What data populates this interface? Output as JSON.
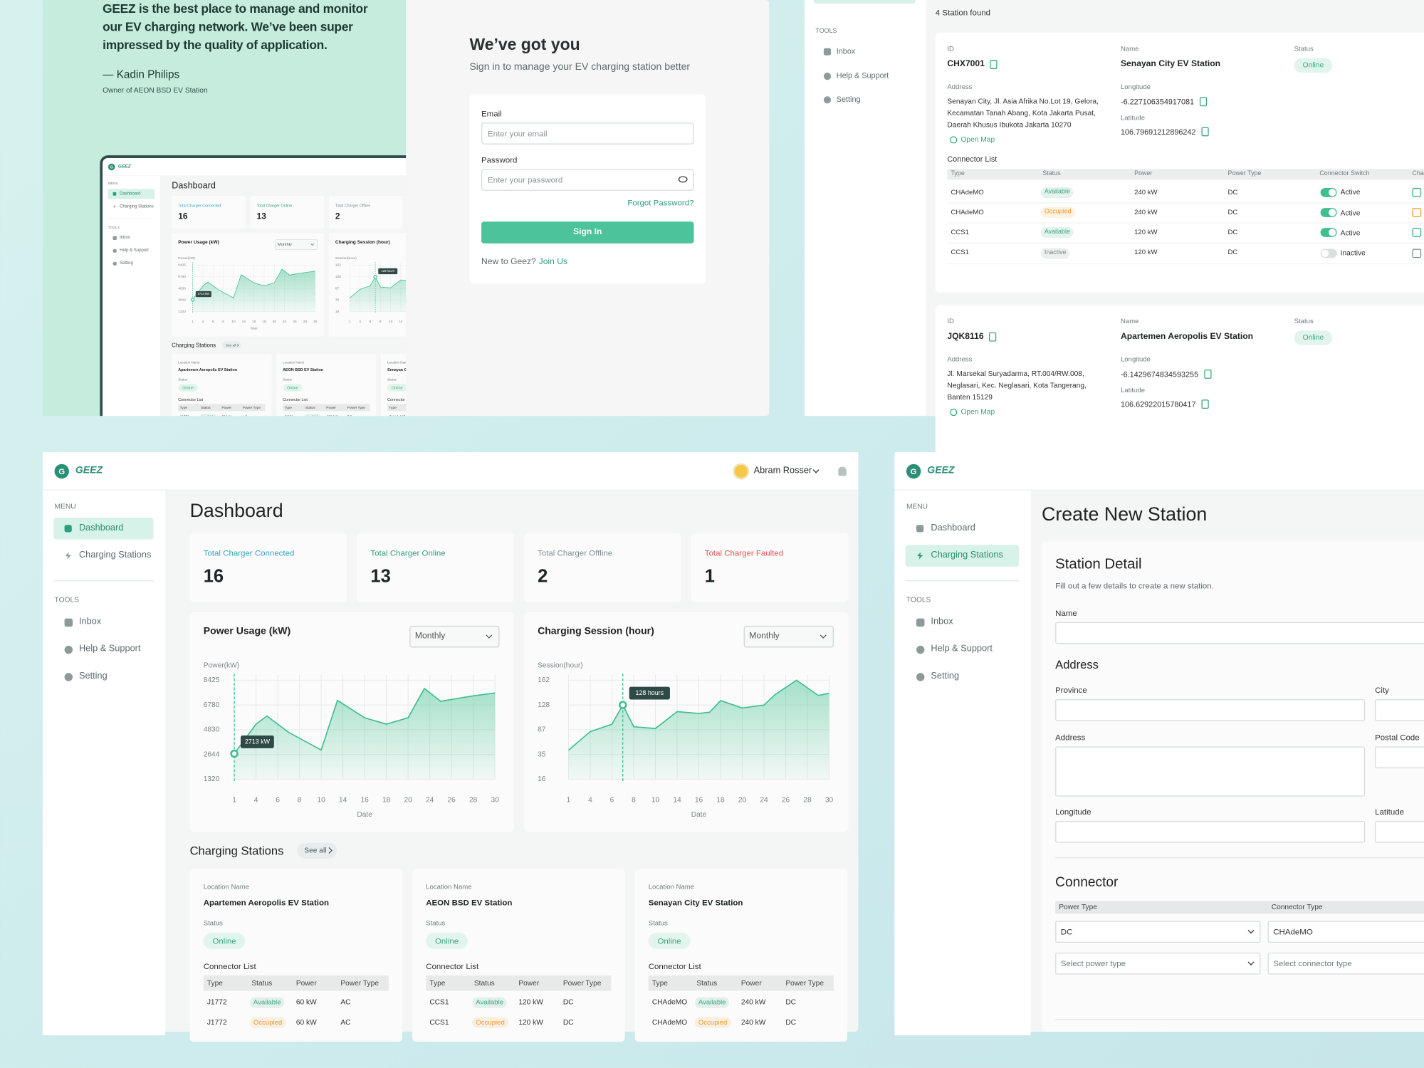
{
  "app": {
    "logo_mark": "G",
    "logo": "GEEZ",
    "menu_heading": "MENU",
    "menu": [
      "Dashboard",
      "Charging Stations"
    ],
    "tools_heading": "TOOLS",
    "tools": [
      "Inbox",
      "Help & Support",
      "Setting"
    ],
    "user": "Abram Rosser"
  },
  "login": {
    "quote": "GEEZ is the best place to manage and monitor our EV charging network. We’ve been super impressed by the quality of application.",
    "author": "— Kadin Philips",
    "role": "Owner of AEON BSD EV Station",
    "title": "We’ve got you",
    "subtitle": "Sign in to manage your EV charging station better",
    "email_label": "Email",
    "email_placeholder": "Enter your email",
    "password_label": "Password",
    "password_placeholder": "Enter your password",
    "forgot": "Forgot Password?",
    "submit": "Sign In",
    "signup_prompt": "New to Geez?",
    "signup_link": "Join Us"
  },
  "station_list": {
    "result_count": "4 Station found",
    "labels": {
      "id": "ID",
      "name": "Name",
      "status": "Status",
      "address": "Address",
      "longitude": "Longitude",
      "latitude": "Latitude",
      "open_map": "Open Map",
      "connector_list": "Connector List"
    },
    "columns": [
      "Type",
      "Status",
      "Power",
      "Power Type",
      "Connector Switch",
      "Cha"
    ],
    "stations": [
      {
        "id": "CHX7001",
        "name": "Senayan City EV Station",
        "status": "Online",
        "address": "Senayan City, Jl. Asia Afrika No.Lot 19, Gelora, Kecamatan Tanah Abang, Kota Jakarta Pusat, Daerah Khusus Ibukota Jakarta 10270",
        "longitude": "-6.227106354917081",
        "latitude": "106.79691212896242",
        "connectors": [
          {
            "type": "CHAdeMO",
            "status": "Available",
            "status_color": "#3aa77c",
            "power": "240 kW",
            "power_type": "DC",
            "switch": "Active",
            "on": true
          },
          {
            "type": "CHAdeMO",
            "status": "Occupied",
            "status_color": "#ef9a2c",
            "power": "240 kW",
            "power_type": "DC",
            "switch": "Active",
            "on": true
          },
          {
            "type": "CCS1",
            "status": "Available",
            "status_color": "#3aa77c",
            "power": "120 kW",
            "power_type": "DC",
            "switch": "Active",
            "on": true
          },
          {
            "type": "CCS1",
            "status": "Inactive",
            "status_color": "#7d8a8a",
            "power": "120 kW",
            "power_type": "DC",
            "switch": "Inactive",
            "on": false
          }
        ]
      },
      {
        "id": "JQK8116",
        "name": "Apartemen Aeropolis EV Station",
        "status": "Online",
        "address": "Jl. Marsekal Suryadarma, RT.004/RW.008, Neglasari, Kec. Neglasari, Kota Tangerang, Banten 15129",
        "longitude": "-6.1429674834593255",
        "latitude": "106.62922015780417",
        "connectors": []
      }
    ]
  },
  "dashboard": {
    "title": "Dashboard",
    "stats": [
      {
        "label": "Total Charger Connected",
        "value": 16,
        "color": "#2fa6bd"
      },
      {
        "label": "Total Charger Online",
        "value": 13,
        "color": "#2e9e7e"
      },
      {
        "label": "Total Charger Offline",
        "value": 2,
        "color": "#7f8f93"
      },
      {
        "label": "Total Charger Faulted",
        "value": 1,
        "color": "#e05555"
      }
    ],
    "charts": [
      {
        "type": "area",
        "title": "Power Usage (kW)",
        "period": "Monthly",
        "ylabel": "Power(kW)",
        "xlabel": "Date",
        "color": "#3dbf8f",
        "yticks": [
          1320,
          2644,
          4830,
          6780,
          8425
        ],
        "xticks": [
          1,
          4,
          6,
          8,
          10,
          14,
          16,
          18,
          20,
          24,
          26,
          28,
          30
        ],
        "x": [
          1,
          4,
          5,
          7,
          10,
          13,
          16,
          18,
          20,
          23,
          25,
          28,
          30
        ],
        "values": [
          2713,
          5263,
          5913,
          4596,
          3034,
          7085,
          5769,
          5263,
          5769,
          7877,
          7024,
          7389,
          7572
        ],
        "value_labels": [
          "2713 kW",
          null,
          null,
          null,
          null,
          null,
          null,
          null,
          null,
          null,
          null,
          null,
          null
        ]
      },
      {
        "type": "area",
        "title": "Charging Session (hour)",
        "period": "Monthly",
        "ylabel": "Session(hour)",
        "xlabel": "Date",
        "color": "#3dbf8f",
        "yticks": [
          16,
          35,
          87,
          128,
          162
        ],
        "xticks": [
          1,
          4,
          6,
          8,
          10,
          14,
          16,
          18,
          20,
          24,
          26,
          28,
          30
        ],
        "x": [
          1,
          4,
          6,
          7,
          8,
          10,
          14,
          16,
          17,
          18,
          20,
          24,
          25,
          27,
          29,
          30
        ],
        "values": [
          44,
          83,
          96,
          128,
          92,
          89,
          117,
          114,
          116,
          134,
          123,
          128,
          142,
          162,
          141,
          144
        ],
        "value_labels": [
          null,
          null,
          null,
          "128 hours",
          null,
          null,
          null,
          null,
          null,
          null,
          null,
          null,
          null,
          null,
          null,
          null
        ]
      }
    ],
    "stations_heading": "Charging Stations",
    "see_all": "See all",
    "station_labels": {
      "location": "Location Name",
      "status": "Status",
      "connector_list": "Connector List"
    },
    "columns": [
      "Type",
      "Status",
      "Power",
      "Power Type"
    ],
    "stations": [
      {
        "name": "Apartemen Aeropolis EV Station",
        "status": "Online",
        "connectors": [
          {
            "type": "J1772",
            "status": "Available",
            "status_color": "#3aa77c",
            "power": "60 kW",
            "power_type": "AC"
          },
          {
            "type": "J1772",
            "status": "Occupied",
            "status_color": "#ef9a2c",
            "power": "60 kW",
            "power_type": "AC"
          }
        ]
      },
      {
        "name": "AEON BSD EV Station",
        "status": "Online",
        "connectors": [
          {
            "type": "CCS1",
            "status": "Available",
            "status_color": "#3aa77c",
            "power": "120 kW",
            "power_type": "DC"
          },
          {
            "type": "CCS1",
            "status": "Occupied",
            "status_color": "#ef9a2c",
            "power": "120 kW",
            "power_type": "DC"
          }
        ]
      },
      {
        "name": "Senayan City EV Station",
        "status": "Online",
        "connectors": [
          {
            "type": "CHAdeMO",
            "status": "Available",
            "status_color": "#3aa77c",
            "power": "240 kW",
            "power_type": "DC"
          },
          {
            "type": "CHAdeMO",
            "status": "Occupied",
            "status_color": "#ef9a2c",
            "power": "240 kW",
            "power_type": "DC"
          }
        ]
      }
    ]
  },
  "create": {
    "title": "Create New Station",
    "section": "Station Detail",
    "description": "Fill out a few details to create a new station.",
    "name_label": "Name",
    "address_heading": "Address",
    "fields": {
      "province": "Province",
      "city": "City",
      "address": "Address",
      "postal_code": "Postal Code",
      "longitude": "Longitude",
      "latitude": "Latitude"
    },
    "connector_heading": "Connector",
    "columns": [
      "Power Type",
      "Connector Type"
    ],
    "rows": [
      [
        "DC",
        "CHAdeMO"
      ],
      [
        "Select power type",
        "Select connector type"
      ]
    ]
  }
}
